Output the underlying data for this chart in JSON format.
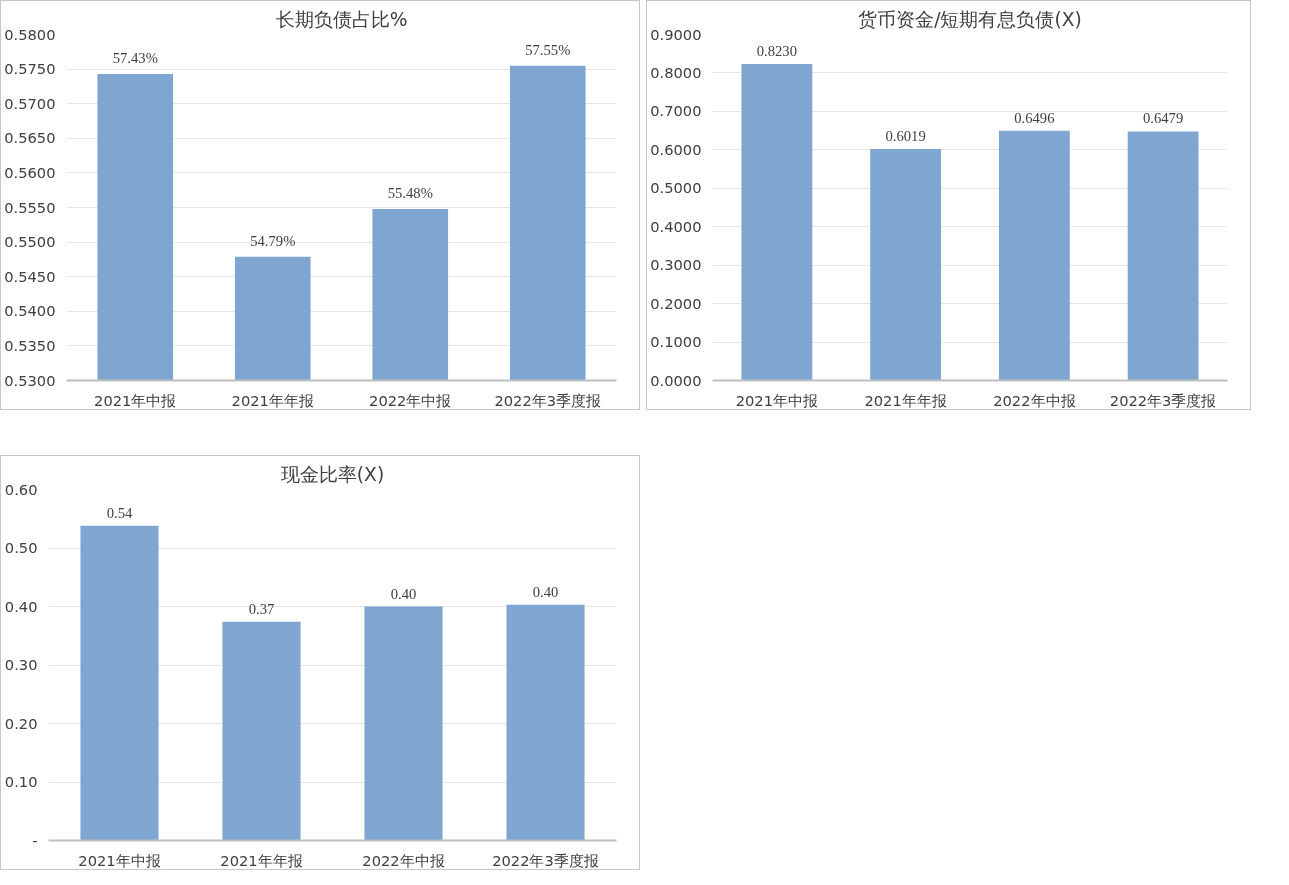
{
  "chart_data": [
    {
      "type": "bar",
      "title": "长期负债占比%",
      "categories": [
        "2021年中报",
        "2021年年报",
        "2022年中报",
        "2022年3季度报"
      ],
      "values": [
        0.5743,
        0.5479,
        0.5548,
        0.5755
      ],
      "value_labels": [
        "57.43%",
        "54.79%",
        "55.48%",
        "57.55%"
      ],
      "color": "#7fa6d1",
      "ylim": [
        0.53,
        0.58
      ],
      "yticks": [
        {
          "value": 0.53,
          "label": "0.5300"
        },
        {
          "value": 0.535,
          "label": "0.5350"
        },
        {
          "value": 0.54,
          "label": "0.5400"
        },
        {
          "value": 0.545,
          "label": "0.5450"
        },
        {
          "value": 0.55,
          "label": "0.5500"
        },
        {
          "value": 0.555,
          "label": "0.5550"
        },
        {
          "value": 0.56,
          "label": "0.5600"
        },
        {
          "value": 0.565,
          "label": "0.5650"
        },
        {
          "value": 0.57,
          "label": "0.5700"
        },
        {
          "value": 0.575,
          "label": "0.5750"
        },
        {
          "value": 0.58,
          "label": "0.5800"
        }
      ],
      "grid": "y"
    },
    {
      "type": "bar",
      "title": "货币资金/短期有息负债(X)",
      "categories": [
        "2021年中报",
        "2021年年报",
        "2022年中报",
        "2022年3季度报"
      ],
      "values": [
        0.823,
        0.6019,
        0.6496,
        0.6479
      ],
      "value_labels": [
        "0.8230",
        "0.6019",
        "0.6496",
        "0.6479"
      ],
      "color": "#7fa6d1",
      "ylim": [
        0,
        0.9
      ],
      "yticks": [
        {
          "value": 0,
          "label": "0.0000"
        },
        {
          "value": 0.1,
          "label": "0.1000"
        },
        {
          "value": 0.2,
          "label": "0.2000"
        },
        {
          "value": 0.3,
          "label": "0.3000"
        },
        {
          "value": 0.4,
          "label": "0.4000"
        },
        {
          "value": 0.5,
          "label": "0.5000"
        },
        {
          "value": 0.6,
          "label": "0.6000"
        },
        {
          "value": 0.7,
          "label": "0.7000"
        },
        {
          "value": 0.8,
          "label": "0.8000"
        },
        {
          "value": 0.9,
          "label": "0.9000"
        }
      ],
      "grid": "y"
    },
    {
      "type": "bar",
      "title": "现金比率(X)",
      "categories": [
        "2021年中报",
        "2021年年报",
        "2022年中报",
        "2022年3季度报"
      ],
      "values": [
        0.538,
        0.374,
        0.4,
        0.403
      ],
      "value_labels": [
        "0.54",
        "0.37",
        "0.40",
        "0.40"
      ],
      "color": "#7fa6d1",
      "ylim": [
        0,
        0.6
      ],
      "yticks": [
        {
          "value": 0,
          "label": "-"
        },
        {
          "value": 0.1,
          "label": "0.10"
        },
        {
          "value": 0.2,
          "label": "0.20"
        },
        {
          "value": 0.3,
          "label": "0.30"
        },
        {
          "value": 0.4,
          "label": "0.40"
        },
        {
          "value": 0.5,
          "label": "0.50"
        },
        {
          "value": 0.6,
          "label": "0.60"
        }
      ],
      "grid": "y"
    }
  ]
}
